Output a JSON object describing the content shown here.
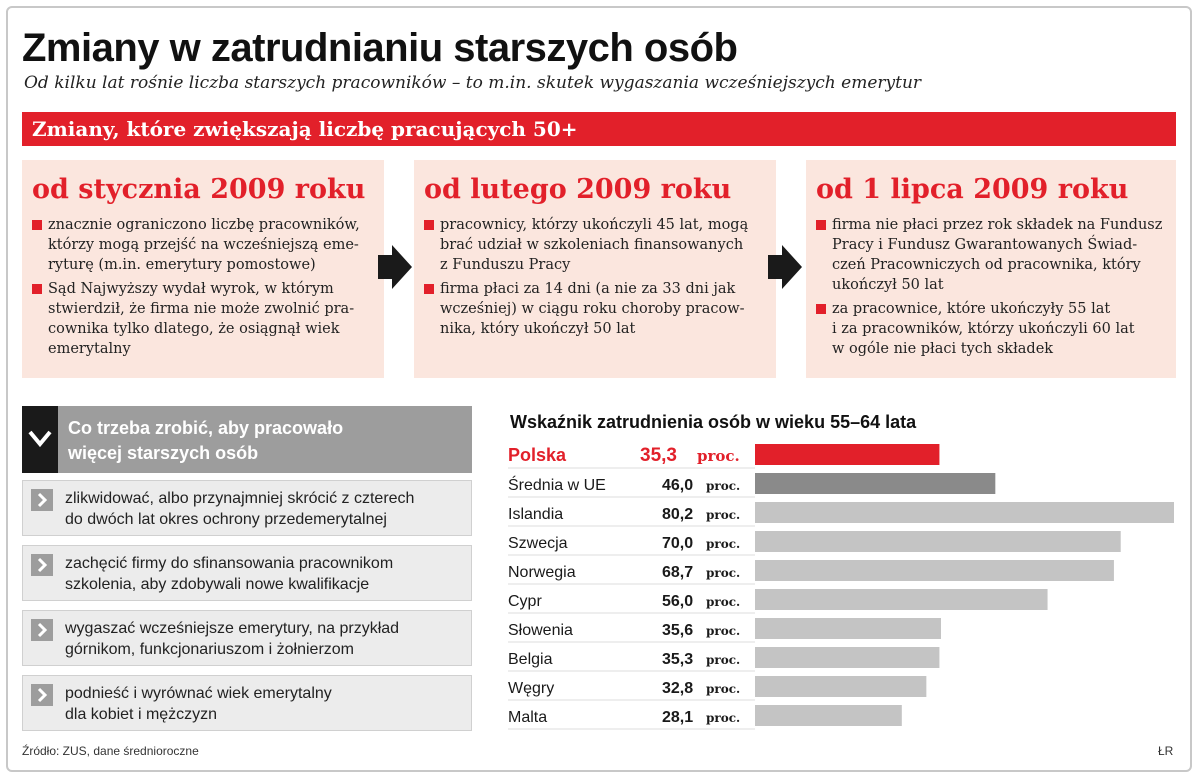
{
  "header": {
    "title": "Zmiany w zatrudnianiu starszych osób",
    "subtitle": "Od kilku lat rośnie liczba starszych pracowników – to m.in. skutek wygaszania wcześniejszych emerytur"
  },
  "banner": {
    "label": "Zmiany, które zwiększają liczbę pracujących 50+"
  },
  "phases": [
    {
      "heading": "od stycznia 2009 roku",
      "bullets": [
        [
          "znacznie ograniczono liczbę pracowników,",
          "którzy mogą przejść na wcześniejszą eme-",
          "ryturę (m.in. emerytury pomostowe)"
        ],
        [
          "Sąd Najwyższy wydał wyrok, w którym",
          "stwierdził, że firma nie może zwolnić pra-",
          "cownika tylko dlatego, że osiągnął wiek",
          "emerytalny"
        ]
      ]
    },
    {
      "heading": "od lutego 2009 roku",
      "bullets": [
        [
          "pracownicy, którzy ukończyli 45 lat, mogą",
          "brać udział w szkoleniach finansowanych",
          "z Funduszu Pracy"
        ],
        [
          "firma płaci za 14 dni (a nie za 33 dni jak",
          "wcześniej) w ciągu roku choroby pracow-",
          "nika, który ukończył 50 lat"
        ]
      ]
    },
    {
      "heading": "od 1 lipca 2009 roku",
      "bullets": [
        [
          "firma nie płaci przez rok składek na Fundusz",
          "Pracy i Fundusz Gwarantowanych Świad-",
          "czeń Pracowniczych od pracownika, który",
          "ukończył 50 lat"
        ],
        [
          "za pracownice, które ukończyły 55 lat",
          "i za pracowników, którzy ukończyli 60 lat",
          "w ogóle nie płaci tych składek"
        ]
      ]
    }
  ],
  "todo": {
    "heading": [
      "Co trzeba zrobić, aby pracowało",
      "więcej starszych osób"
    ],
    "items": [
      [
        "zlikwidować, albo przynajmniej skrócić z czterech",
        "do dwóch lat okres ochrony przedemerytalnej"
      ],
      [
        "zachęcić firmy do sfinansowania pracownikom",
        "szkolenia, aby zdobywali nowe kwalifikacje"
      ],
      [
        "wygaszać wcześniejsze emerytury, na przykład",
        "górnikom, funkcjonariuszom i żołnierzom"
      ],
      [
        "podnieść i wyrównać wiek emerytalny",
        "dla kobiet i mężczyzn"
      ]
    ]
  },
  "chart_data": {
    "type": "bar",
    "orientation": "horizontal",
    "title": "Wskaźnik zatrudnienia osób w wieku 55–64 lata",
    "categories": [
      "Polska",
      "Średnia w UE",
      "Islandia",
      "Szwecja",
      "Norwegia",
      "Cypr",
      "Słowenia",
      "Belgia",
      "Węgry",
      "Malta"
    ],
    "values": [
      35.3,
      46.0,
      80.2,
      70.0,
      68.7,
      56.0,
      35.6,
      35.3,
      32.8,
      28.1
    ],
    "value_labels": [
      "35,3",
      "46,0",
      "80,2",
      "70,0",
      "68,7",
      "56,0",
      "35,6",
      "35,3",
      "32,8",
      "28,1"
    ],
    "unit": "proc.",
    "xlim": [
      0,
      80.2
    ],
    "colors": {
      "highlight": "#e2202a",
      "eu": "#8a8a8a",
      "default": "#c4c4c4"
    }
  },
  "footer": {
    "source": "Źródło: ZUS, dane średnioroczne",
    "author": "ŁR"
  }
}
